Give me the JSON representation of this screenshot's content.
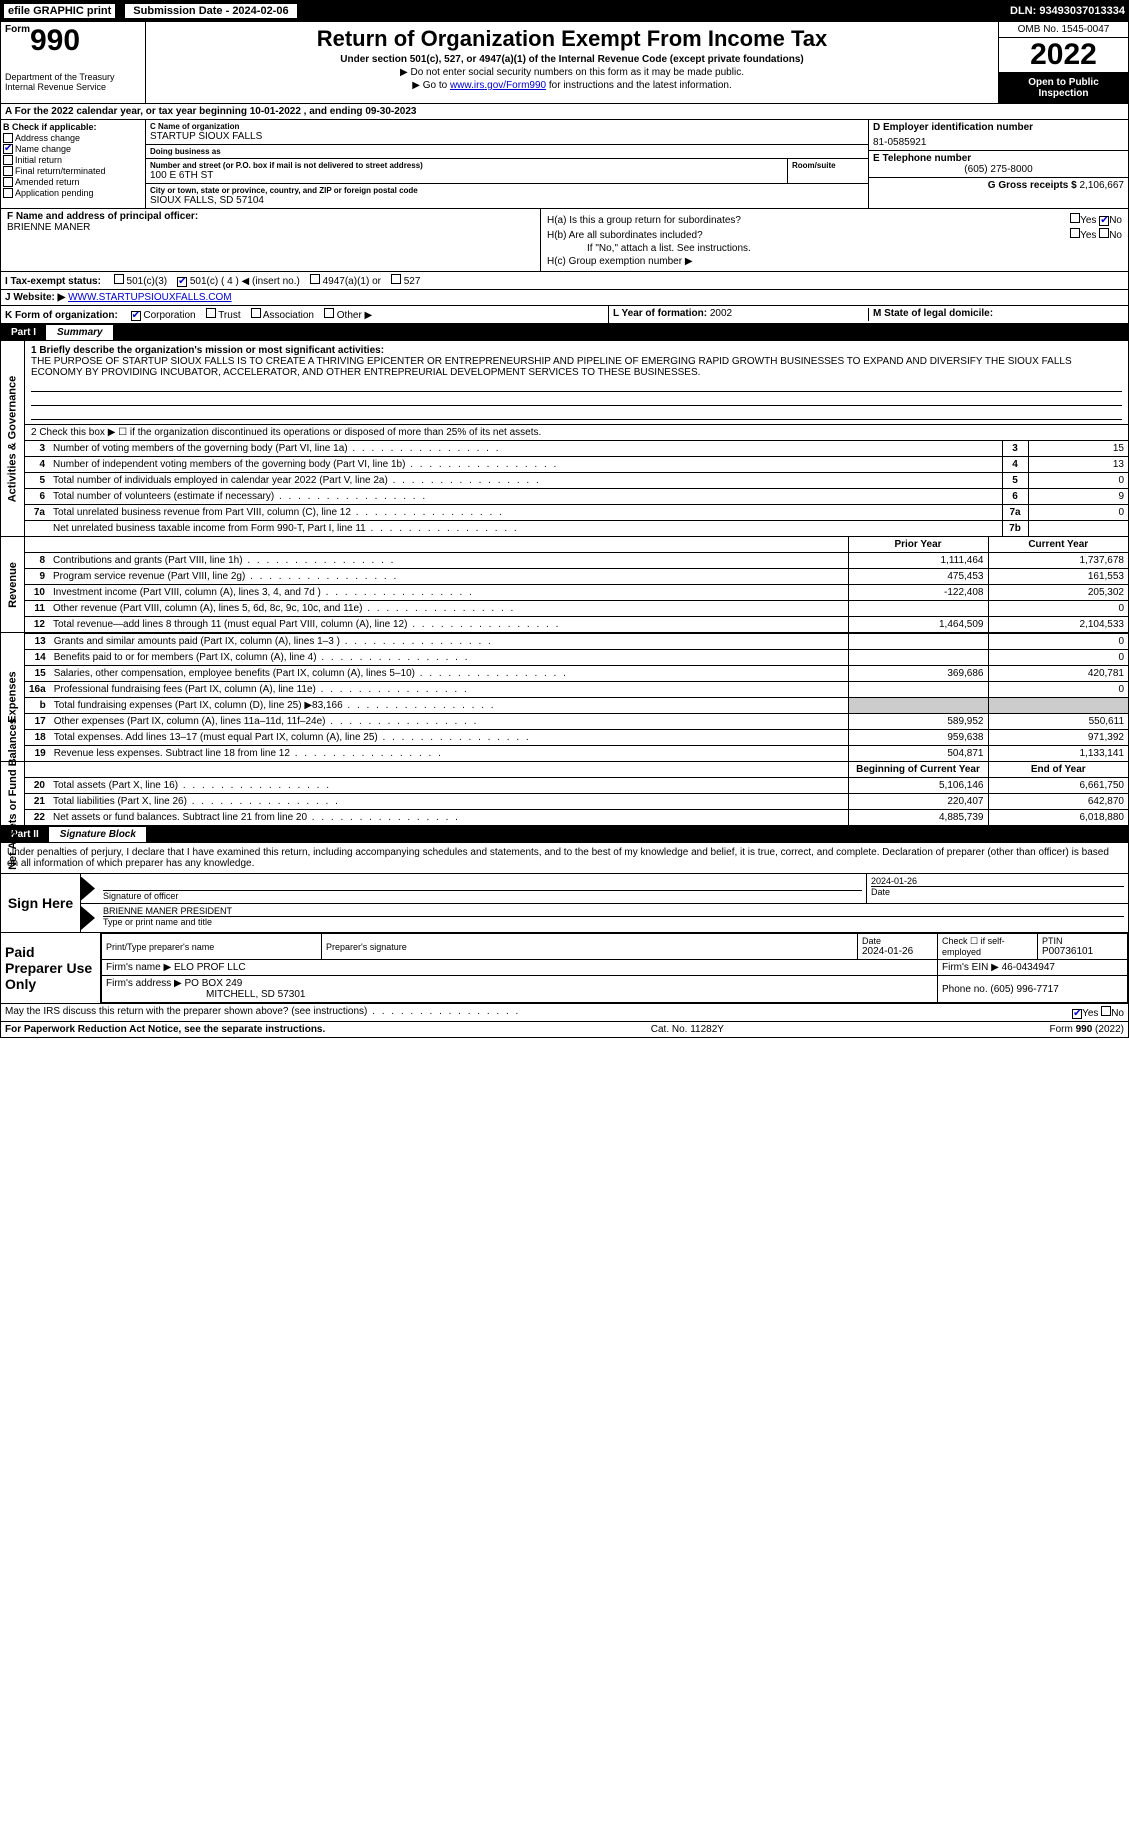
{
  "topbar": {
    "efile": "efile GRAPHIC print",
    "subdate_label": "Submission Date - 2024-02-06",
    "dln": "DLN: 93493037013334"
  },
  "header": {
    "form_word": "Form",
    "form_num": "990",
    "title": "Return of Organization Exempt From Income Tax",
    "subtitle": "Under section 501(c), 527, or 4947(a)(1) of the Internal Revenue Code (except private foundations)",
    "note1": "▶ Do not enter social security numbers on this form as it may be made public.",
    "note2_prefix": "▶ Go to ",
    "note2_link": "www.irs.gov/Form990",
    "note2_suffix": " for instructions and the latest information.",
    "dept": "Department of the Treasury",
    "irs": "Internal Revenue Service",
    "omb": "OMB No. 1545-0047",
    "year": "2022",
    "open_public": "Open to Public Inspection"
  },
  "row_a": "A For the 2022 calendar year, or tax year beginning 10-01-2022   , and ending 09-30-2023",
  "b": {
    "header": "B Check if applicable:",
    "items": [
      "Address change",
      "Name change",
      "Initial return",
      "Final return/terminated",
      "Amended return",
      "Application pending"
    ],
    "checked": [
      false,
      true,
      false,
      false,
      false,
      false
    ]
  },
  "c": {
    "name_label": "C Name of organization",
    "name": "STARTUP SIOUX FALLS",
    "dba_label": "Doing business as",
    "dba": "",
    "street_label": "Number and street (or P.O. box if mail is not delivered to street address)",
    "room_label": "Room/suite",
    "street": "100 E 6TH ST",
    "city_label": "City or town, state or province, country, and ZIP or foreign postal code",
    "city": "SIOUX FALLS, SD  57104"
  },
  "d": {
    "label": "D Employer identification number",
    "value": "81-0585921"
  },
  "e": {
    "label": "E Telephone number",
    "value": "(605) 275-8000"
  },
  "g": {
    "label": "G Gross receipts $",
    "value": "2,106,667"
  },
  "f": {
    "label": "F Name and address of principal officer:",
    "value": "BRIENNE MANER"
  },
  "h": {
    "ha": "H(a)  Is this a group return for subordinates?",
    "hb": "H(b)  Are all subordinates included?",
    "hb_note": "If \"No,\" attach a list. See instructions.",
    "hc": "H(c)  Group exemption number ▶",
    "yes": "Yes",
    "no": "No",
    "ha_no_checked": true
  },
  "i": {
    "label": "I   Tax-exempt status:",
    "opts": [
      "501(c)(3)",
      "501(c) ( 4 ) ◀ (insert no.)",
      "4947(a)(1) or",
      "527"
    ],
    "checked_idx": 1
  },
  "j": {
    "label": "J   Website: ▶",
    "value": "WWW.STARTUPSIOUXFALLS.COM"
  },
  "k": {
    "label": "K Form of organization:",
    "opts": [
      "Corporation",
      "Trust",
      "Association",
      "Other ▶"
    ],
    "checked_idx": 0
  },
  "l": {
    "label": "L Year of formation:",
    "value": "2002"
  },
  "m": {
    "label": "M State of legal domicile:",
    "value": ""
  },
  "part1": {
    "num": "Part I",
    "title": "Summary"
  },
  "mission": {
    "label": "1  Briefly describe the organization's mission or most significant activities:",
    "text": "THE PURPOSE OF STARTUP SIOUX FALLS IS TO CREATE A THRIVING EPICENTER OR ENTREPRENEURSHIP AND PIPELINE OF EMERGING RAPID GROWTH BUSINESSES TO EXPAND AND DIVERSIFY THE SIOUX FALLS ECONOMY BY PROVIDING INCUBATOR, ACCELERATOR, AND OTHER ENTREPREURIAL DEVELOPMENT SERVICES TO THESE BUSINESSES."
  },
  "gov_side": "Activities & Governance",
  "rev_side": "Revenue",
  "exp_side": "Expenses",
  "net_side": "Net Assets or Fund Balances",
  "gov_lines": {
    "l2": "2   Check this box ▶ ☐  if the organization discontinued its operations or disposed of more than 25% of its net assets.",
    "rows": [
      {
        "n": "3",
        "t": "Number of voting members of the governing body (Part VI, line 1a)",
        "box": "3",
        "v": "15"
      },
      {
        "n": "4",
        "t": "Number of independent voting members of the governing body (Part VI, line 1b)",
        "box": "4",
        "v": "13"
      },
      {
        "n": "5",
        "t": "Total number of individuals employed in calendar year 2022 (Part V, line 2a)",
        "box": "5",
        "v": "0"
      },
      {
        "n": "6",
        "t": "Total number of volunteers (estimate if necessary)",
        "box": "6",
        "v": "9"
      },
      {
        "n": "7a",
        "t": "Total unrelated business revenue from Part VIII, column (C), line 12",
        "box": "7a",
        "v": "0"
      },
      {
        "n": "",
        "t": "Net unrelated business taxable income from Form 990-T, Part I, line 11",
        "box": "7b",
        "v": ""
      }
    ]
  },
  "col_hdr": {
    "py": "Prior Year",
    "cy": "Current Year",
    "boy": "Beginning of Current Year",
    "eoy": "End of Year"
  },
  "rev_lines": [
    {
      "n": "8",
      "t": "Contributions and grants (Part VIII, line 1h)",
      "py": "1,111,464",
      "cy": "1,737,678"
    },
    {
      "n": "9",
      "t": "Program service revenue (Part VIII, line 2g)",
      "py": "475,453",
      "cy": "161,553"
    },
    {
      "n": "10",
      "t": "Investment income (Part VIII, column (A), lines 3, 4, and 7d )",
      "py": "-122,408",
      "cy": "205,302"
    },
    {
      "n": "11",
      "t": "Other revenue (Part VIII, column (A), lines 5, 6d, 8c, 9c, 10c, and 11e)",
      "py": "",
      "cy": "0"
    },
    {
      "n": "12",
      "t": "Total revenue—add lines 8 through 11 (must equal Part VIII, column (A), line 12)",
      "py": "1,464,509",
      "cy": "2,104,533"
    }
  ],
  "exp_lines": [
    {
      "n": "13",
      "t": "Grants and similar amounts paid (Part IX, column (A), lines 1–3 )",
      "py": "",
      "cy": "0"
    },
    {
      "n": "14",
      "t": "Benefits paid to or for members (Part IX, column (A), line 4)",
      "py": "",
      "cy": "0"
    },
    {
      "n": "15",
      "t": "Salaries, other compensation, employee benefits (Part IX, column (A), lines 5–10)",
      "py": "369,686",
      "cy": "420,781"
    },
    {
      "n": "16a",
      "t": "Professional fundraising fees (Part IX, column (A), line 11e)",
      "py": "",
      "cy": "0"
    },
    {
      "n": "b",
      "t": "Total fundraising expenses (Part IX, column (D), line 25) ▶83,166",
      "py": "GREY",
      "cy": "GREY"
    },
    {
      "n": "17",
      "t": "Other expenses (Part IX, column (A), lines 11a–11d, 11f–24e)",
      "py": "589,952",
      "cy": "550,611"
    },
    {
      "n": "18",
      "t": "Total expenses. Add lines 13–17 (must equal Part IX, column (A), line 25)",
      "py": "959,638",
      "cy": "971,392"
    },
    {
      "n": "19",
      "t": "Revenue less expenses. Subtract line 18 from line 12",
      "py": "504,871",
      "cy": "1,133,141"
    }
  ],
  "net_lines": [
    {
      "n": "20",
      "t": "Total assets (Part X, line 16)",
      "py": "5,106,146",
      "cy": "6,661,750"
    },
    {
      "n": "21",
      "t": "Total liabilities (Part X, line 26)",
      "py": "220,407",
      "cy": "642,870"
    },
    {
      "n": "22",
      "t": "Net assets or fund balances. Subtract line 21 from line 20",
      "py": "4,885,739",
      "cy": "6,018,880"
    }
  ],
  "part2": {
    "num": "Part II",
    "title": "Signature Block"
  },
  "penalties": "Under penalties of perjury, I declare that I have examined this return, including accompanying schedules and statements, and to the best of my knowledge and belief, it is true, correct, and complete. Declaration of preparer (other than officer) is based on all information of which preparer has any knowledge.",
  "sign": {
    "here": "Sign Here",
    "sig_officer": "Signature of officer",
    "date": "Date",
    "date_val": "2024-01-26",
    "name": "BRIENNE MANER  PRESIDENT",
    "name_label": "Type or print name and title"
  },
  "prep": {
    "label": "Paid Preparer Use Only",
    "print_label": "Print/Type preparer's name",
    "sig_label": "Preparer's signature",
    "date_label": "Date",
    "date_val": "2024-01-26",
    "check_label": "Check ☐ if self-employed",
    "ptin_label": "PTIN",
    "ptin": "P00736101",
    "firm_name_label": "Firm's name   ▶",
    "firm_name": "ELO PROF LLC",
    "firm_ein_label": "Firm's EIN ▶",
    "firm_ein": "46-0434947",
    "firm_addr_label": "Firm's address ▶",
    "firm_addr1": "PO BOX 249",
    "firm_addr2": "MITCHELL, SD  57301",
    "phone_label": "Phone no.",
    "phone": "(605) 996-7717"
  },
  "discuss": {
    "text": "May the IRS discuss this return with the preparer shown above? (see instructions)",
    "yes": "Yes",
    "no": "No",
    "yes_checked": true
  },
  "footer": {
    "left": "For Paperwork Reduction Act Notice, see the separate instructions.",
    "mid": "Cat. No. 11282Y",
    "right": "Form 990 (2022)"
  }
}
